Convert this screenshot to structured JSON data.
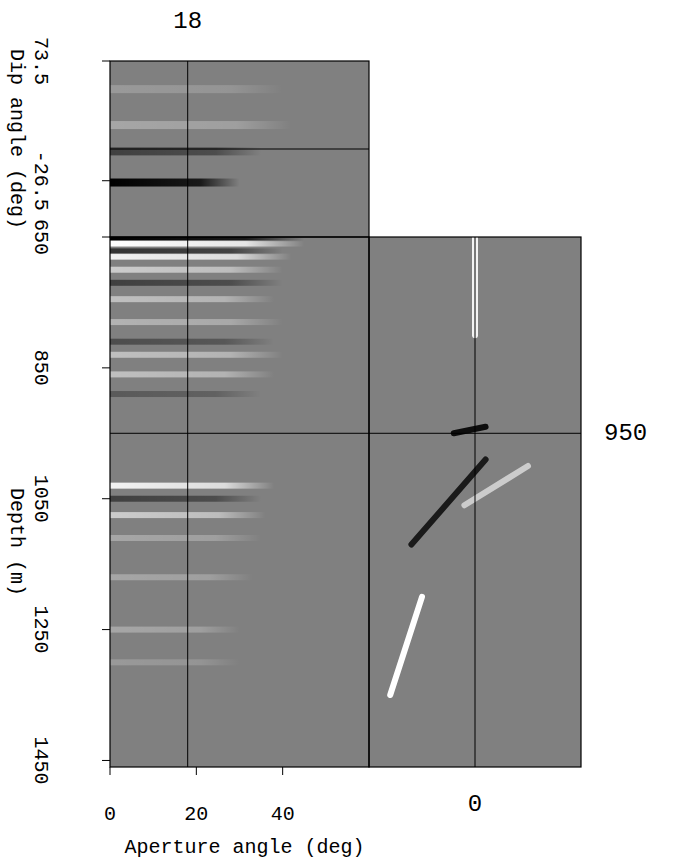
{
  "chart_data": {
    "type": "cube",
    "xlabel": "Aperture angle (deg)",
    "ylabel_top": "Dip angle (deg)",
    "ylabel": "Depth (m)",
    "xlim": [
      0,
      60
    ],
    "xticks": [
      0,
      20,
      40
    ],
    "ylim": [
      650,
      1460
    ],
    "yticks": [
      650,
      850,
      1050,
      1250,
      1450
    ],
    "dip_lim": [
      73.5,
      -73.5
    ],
    "dip_ticks": [
      73.5,
      -26.5
    ],
    "midpoint_lim": [
      -100,
      100
    ],
    "crosshair": {
      "aperture": 18,
      "depth": 950,
      "midpoint": 0,
      "dip": 0
    },
    "angle_gather_events": [
      {
        "depth": 652,
        "amp": -1,
        "max_angle": 45
      },
      {
        "depth": 660,
        "amp": 1,
        "max_angle": 45
      },
      {
        "depth": 672,
        "amp": -0.6,
        "max_angle": 40
      },
      {
        "depth": 680,
        "amp": 0.9,
        "max_angle": 42
      },
      {
        "depth": 700,
        "amp": 0.6,
        "max_angle": 40
      },
      {
        "depth": 720,
        "amp": -0.5,
        "max_angle": 40
      },
      {
        "depth": 745,
        "amp": 0.5,
        "max_angle": 38
      },
      {
        "depth": 780,
        "amp": 0.4,
        "max_angle": 40
      },
      {
        "depth": 810,
        "amp": -0.4,
        "max_angle": 38
      },
      {
        "depth": 830,
        "amp": 0.5,
        "max_angle": 40
      },
      {
        "depth": 860,
        "amp": 0.5,
        "max_angle": 38
      },
      {
        "depth": 890,
        "amp": -0.3,
        "max_angle": 35
      },
      {
        "depth": 1030,
        "amp": 0.9,
        "max_angle": 38
      },
      {
        "depth": 1050,
        "amp": -0.5,
        "max_angle": 35
      },
      {
        "depth": 1075,
        "amp": 0.6,
        "max_angle": 36
      },
      {
        "depth": 1110,
        "amp": 0.3,
        "max_angle": 35
      },
      {
        "depth": 1170,
        "amp": 0.3,
        "max_angle": 33
      },
      {
        "depth": 1250,
        "amp": 0.3,
        "max_angle": 30
      },
      {
        "depth": 1300,
        "amp": 0.2,
        "max_angle": 30
      }
    ],
    "dip_events": [
      {
        "dip": 50,
        "amp": 0.2,
        "max_angle": 40
      },
      {
        "dip": 20,
        "amp": 0.3,
        "max_angle": 42
      },
      {
        "dip": -2,
        "amp": -0.5,
        "max_angle": 35
      },
      {
        "dip": -28,
        "amp": -1,
        "max_angle": 30
      }
    ],
    "section_events": [
      {
        "x1": 0,
        "z1": 650,
        "x2": 0,
        "z2": 800,
        "amp": 0.9
      },
      {
        "x1": -20,
        "z1": 950,
        "x2": 10,
        "z2": 940,
        "amp": -0.9
      },
      {
        "x1": -60,
        "z1": 1120,
        "x2": 10,
        "z2": 990,
        "amp": -0.8
      },
      {
        "x1": -10,
        "z1": 1060,
        "x2": 50,
        "z2": 1000,
        "amp": 0.6
      },
      {
        "x1": -80,
        "z1": 1350,
        "x2": -50,
        "z2": 1200,
        "amp": 1
      }
    ]
  }
}
